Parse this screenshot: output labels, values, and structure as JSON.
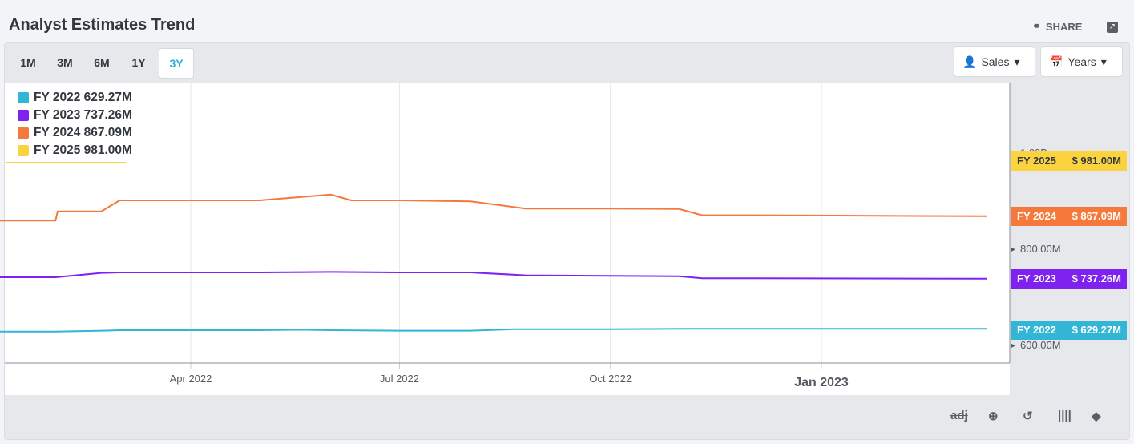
{
  "header": {
    "title": "Analyst Estimates Trend",
    "share_label": "SHARE"
  },
  "ranges": [
    "1M",
    "3M",
    "6M",
    "1Y",
    "3Y"
  ],
  "active_range": "3Y",
  "dropdowns": {
    "metric": "Sales",
    "period": "Years"
  },
  "colors": {
    "fy2022": "#33b5d5",
    "fy2023": "#7f22f0",
    "fy2024": "#f4793a",
    "fy2025": "#fbd33f"
  },
  "chart_data": {
    "type": "line",
    "x_tick_labels": [
      "Apr 2022",
      "Jul 2022",
      "Oct 2022",
      "Jan 2023"
    ],
    "y_tick_labels": [
      "600.00M",
      "800.00M",
      "1.00B"
    ],
    "ylim_millions": [
      560,
      1140
    ],
    "series": [
      {
        "name": "FY 2022",
        "legend": "FY 2022 629.27M",
        "tag_label": "FY 2022",
        "tag_value": "$ 629.27M",
        "last": 629.27,
        "points": [
          [
            "2022-01-01",
            627
          ],
          [
            "2022-02-01",
            627
          ],
          [
            "2022-02-22",
            629
          ],
          [
            "2022-03-01",
            630
          ],
          [
            "2022-04-01",
            630
          ],
          [
            "2022-05-01",
            630
          ],
          [
            "2022-05-20",
            631
          ],
          [
            "2022-06-01",
            630
          ],
          [
            "2022-07-01",
            629
          ],
          [
            "2022-08-01",
            629
          ],
          [
            "2022-08-20",
            632
          ],
          [
            "2022-10-01",
            632
          ],
          [
            "2022-11-03",
            633
          ],
          [
            "2022-12-01",
            633
          ],
          [
            "2023-03-14",
            633
          ]
        ]
      },
      {
        "name": "FY 2023",
        "legend": "FY 2023 737.26M",
        "tag_label": "FY 2023",
        "tag_value": "$ 737.26M",
        "last": 737.26,
        "points": [
          [
            "2022-01-01",
            740
          ],
          [
            "2022-02-01",
            740
          ],
          [
            "2022-02-21",
            749
          ],
          [
            "2022-03-01",
            750
          ],
          [
            "2022-04-01",
            750
          ],
          [
            "2022-05-01",
            750
          ],
          [
            "2022-06-01",
            751
          ],
          [
            "2022-07-01",
            750
          ],
          [
            "2022-08-01",
            750
          ],
          [
            "2022-08-25",
            744
          ],
          [
            "2022-10-01",
            743
          ],
          [
            "2022-10-31",
            742
          ],
          [
            "2022-11-10",
            738
          ],
          [
            "2022-12-01",
            738
          ],
          [
            "2023-03-14",
            737
          ]
        ]
      },
      {
        "name": "FY 2024",
        "legend": "FY 2024 867.09M",
        "tag_label": "FY 2024",
        "tag_value": "$ 867.09M",
        "last": 867.09,
        "points": [
          [
            "2022-01-01",
            858
          ],
          [
            "2022-02-01",
            858
          ],
          [
            "2022-02-02",
            877
          ],
          [
            "2022-02-21",
            877
          ],
          [
            "2022-03-01",
            900
          ],
          [
            "2022-04-01",
            900
          ],
          [
            "2022-05-01",
            900
          ],
          [
            "2022-06-01",
            912
          ],
          [
            "2022-06-10",
            900
          ],
          [
            "2022-07-01",
            900
          ],
          [
            "2022-08-01",
            898
          ],
          [
            "2022-08-25",
            883
          ],
          [
            "2022-10-01",
            883
          ],
          [
            "2022-10-31",
            882
          ],
          [
            "2022-11-10",
            869
          ],
          [
            "2022-12-01",
            869
          ],
          [
            "2023-03-14",
            867
          ]
        ]
      },
      {
        "name": "FY 2025",
        "legend": "FY 2025 981.00M",
        "tag_label": "FY 2025",
        "tag_value": "$ 981.00M",
        "last": 981.0,
        "points": []
      }
    ]
  },
  "toolbar_icons": [
    "adj-icon",
    "crosshair-icon",
    "replay-icon",
    "bars-icon",
    "tag-icon"
  ],
  "toolbar_adj_label": "adj"
}
